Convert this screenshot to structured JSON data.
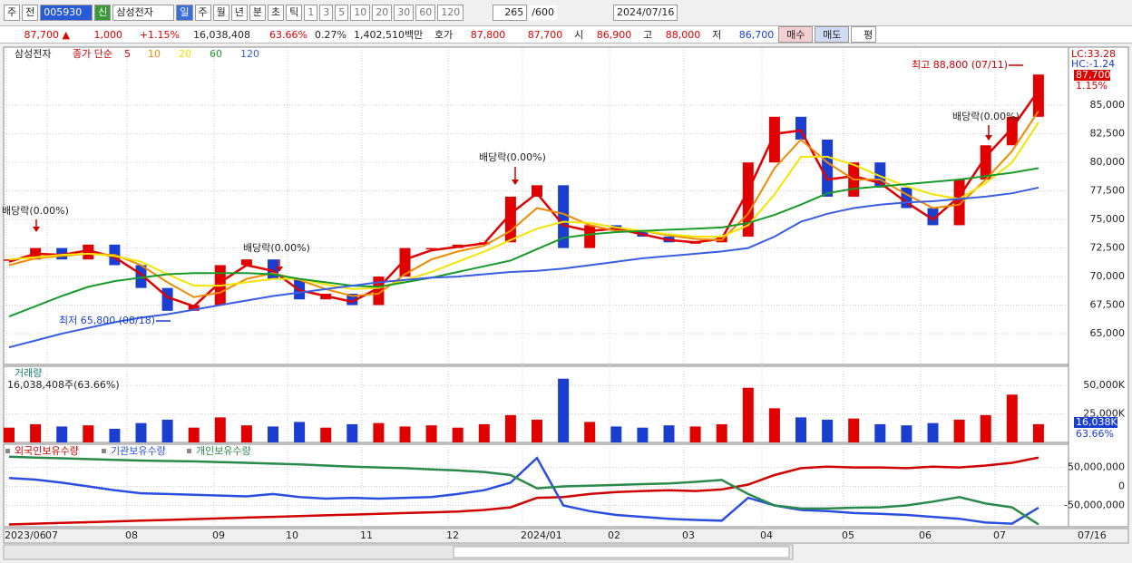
{
  "toolbar": {
    "items": [
      "주",
      "전",
      "005930",
      "신",
      "삼성전자",
      "일",
      "주",
      "월",
      "년",
      "분",
      "초",
      "틱",
      "1",
      "3",
      "5",
      "10",
      "20",
      "30",
      "60",
      "120",
      "265",
      "/600",
      "2024/07/16"
    ]
  },
  "quote": {
    "items": [
      "87,700 ▲",
      "1,000",
      "+1.15%",
      "16,038,408",
      "63.66%",
      "0.27%",
      "1,402,510백만",
      "호가",
      "87,800",
      "87,700",
      "시",
      "86,900",
      "고",
      "88,000",
      "저",
      "86,700",
      "매수",
      "매도",
      "평"
    ]
  },
  "x_axis": {
    "labels": [
      "2023/06",
      "07",
      "08",
      "09",
      "10",
      "11",
      "12",
      "2024/01",
      "02",
      "03",
      "04",
      "05",
      "06",
      "07"
    ],
    "end_label": "07/16"
  },
  "chart_data": [
    {
      "type": "candlestick",
      "title": "삼성전자",
      "subtitle": "종가 단순",
      "up_color": "#e00000",
      "down_color": "#1a3fd0",
      "close": [
        71500,
        72500,
        71500,
        72800,
        71000,
        69000,
        67000,
        67500,
        71000,
        71500,
        69800,
        68000,
        68500,
        67500,
        70000,
        72500,
        72500,
        72800,
        73000,
        77000,
        78000,
        72500,
        74500,
        74000,
        73500,
        73000,
        73000,
        73500,
        80000,
        84000,
        82000,
        77000,
        80000,
        77800,
        76000,
        74500,
        78500,
        81500,
        84000,
        87700
      ],
      "series": [
        {
          "name": "5",
          "color": "#e00000",
          "values": [
            71300,
            72000,
            71900,
            72300,
            71700,
            70200,
            68200,
            67400,
            69500,
            71000,
            70500,
            68800,
            68300,
            67800,
            69000,
            71500,
            72300,
            72600,
            72900,
            75500,
            77300,
            74500,
            74000,
            74200,
            73700,
            73200,
            73000,
            73300,
            77500,
            82500,
            82800,
            78500,
            78800,
            78200,
            76500,
            75000,
            77000,
            80500,
            83000,
            86300
          ]
        },
        {
          "name": "10",
          "color": "#f08a00",
          "values": [
            71000,
            71600,
            71800,
            72000,
            71900,
            71000,
            69500,
            68200,
            68600,
            69800,
            70300,
            69700,
            68900,
            68300,
            68500,
            70200,
            71500,
            72200,
            72700,
            74000,
            76000,
            75500,
            74500,
            74000,
            74000,
            73600,
            73300,
            73200,
            75500,
            79500,
            82000,
            80000,
            78500,
            78500,
            77200,
            76000,
            76300,
            78500,
            81000,
            84500
          ]
        },
        {
          "name": "20",
          "color": "#f5e400",
          "values": [
            71500,
            71700,
            71900,
            72000,
            71800,
            71300,
            70200,
            69200,
            69200,
            69500,
            69800,
            69800,
            69300,
            68900,
            69000,
            69700,
            70400,
            71300,
            72200,
            73200,
            74200,
            74800,
            74700,
            74300,
            74000,
            73700,
            73500,
            73500,
            74500,
            77200,
            80500,
            80500,
            79800,
            78800,
            77900,
            77200,
            76800,
            78200,
            80000,
            83500
          ]
        },
        {
          "name": "60",
          "color": "#1a9a2a",
          "values": [
            66500,
            67400,
            68300,
            69100,
            69600,
            69900,
            70200,
            70300,
            70300,
            70300,
            70200,
            69800,
            69500,
            69200,
            69100,
            69500,
            69900,
            70400,
            70900,
            71400,
            72400,
            73400,
            73700,
            73900,
            74000,
            74100,
            74200,
            74300,
            74700,
            75400,
            76300,
            77300,
            77700,
            77900,
            78100,
            78300,
            78500,
            78800,
            79100,
            79500
          ]
        },
        {
          "name": "120",
          "color": "#3a5ee0",
          "values": [
            63800,
            64400,
            65000,
            65500,
            66000,
            66400,
            66700,
            67100,
            67500,
            67900,
            68300,
            68600,
            68900,
            69200,
            69500,
            69700,
            69900,
            70000,
            70200,
            70400,
            70500,
            70700,
            71000,
            71300,
            71600,
            71800,
            72000,
            72200,
            72500,
            73500,
            74800,
            75500,
            76000,
            76300,
            76500,
            76600,
            76800,
            77000,
            77300,
            77800
          ]
        }
      ],
      "ylim": [
        62300,
        90100
      ],
      "yticks": [
        {
          "value": 65000,
          "label": "65,000"
        },
        {
          "value": 67500,
          "label": "67,500"
        },
        {
          "value": 70000,
          "label": "70,000"
        },
        {
          "value": 72500,
          "label": "72,500"
        },
        {
          "value": 75000,
          "label": "75,000"
        },
        {
          "value": 77500,
          "label": "77,500"
        },
        {
          "value": 80000,
          "label": "80,000"
        },
        {
          "value": 82500,
          "label": "82,500"
        },
        {
          "value": 85000,
          "label": "85,000"
        }
      ],
      "annotations": [
        "배당락(0.00%)",
        "배당락(0.00%)",
        "배당락(0.00%)",
        "배당락(0.00%)",
        "최저 65,800 (08/18)",
        "최고 88,800 (07/11)"
      ],
      "lc": "LC:33.28",
      "hc": "HC:-1.24",
      "current_label": "87,700",
      "change_label": "1.15%",
      "grid": true
    },
    {
      "type": "bar",
      "title": "거래량",
      "subtitle": "16,038,408주(63.66%)",
      "up_color": "#e00000",
      "down_color": "#1a3fd0",
      "values": [
        13000,
        16000,
        14000,
        15000,
        12000,
        17000,
        20000,
        13000,
        22000,
        15000,
        14000,
        18000,
        13000,
        16000,
        17000,
        14000,
        15000,
        13000,
        16000,
        24000,
        20000,
        56000,
        18000,
        14000,
        13000,
        15000,
        14000,
        16000,
        48000,
        30000,
        22000,
        20000,
        21000,
        16000,
        15000,
        17000,
        20000,
        24000,
        42000,
        16038
      ],
      "ylim": [
        0,
        66900
      ],
      "yticks": [
        {
          "value": 25000,
          "label": "25,000K"
        },
        {
          "value": 50000,
          "label": "50,000K"
        }
      ],
      "last_label": "16,038K",
      "ratio_label": "63.66%",
      "grid": true
    },
    {
      "type": "line",
      "ylim": [
        -106000000,
        111000000
      ],
      "yticks": [
        {
          "value": -50000000,
          "label": "-50,000,000"
        },
        0,
        {
          "value": 50000000,
          "label": "50,000,000"
        }
      ],
      "grid": true,
      "series": [
        {
          "name": "외국인보유수량",
          "color": "#d00000",
          "values": [
            -100000000,
            -98000000,
            -96000000,
            -94000000,
            -92000000,
            -90000000,
            -88000000,
            -86000000,
            -84000000,
            -82000000,
            -80000000,
            -78000000,
            -76000000,
            -74000000,
            -72000000,
            -70000000,
            -68000000,
            -66000000,
            -62000000,
            -55000000,
            -30000000,
            -28000000,
            -20000000,
            -15000000,
            -12000000,
            -10000000,
            -12000000,
            -8000000,
            5000000,
            30000000,
            48000000,
            52000000,
            50000000,
            50000000,
            48000000,
            52000000,
            50000000,
            55000000,
            62000000,
            76000000
          ]
        },
        {
          "name": "기관보유수량",
          "color": "#2a4fe0",
          "values": [
            22000000,
            18000000,
            10000000,
            0,
            -10000000,
            -18000000,
            -20000000,
            -22000000,
            -24000000,
            -26000000,
            -20000000,
            -28000000,
            -32000000,
            -30000000,
            -32000000,
            -30000000,
            -28000000,
            -20000000,
            -10000000,
            10000000,
            75000000,
            -50000000,
            -65000000,
            -75000000,
            -80000000,
            -85000000,
            -88000000,
            -90000000,
            -30000000,
            -50000000,
            -62000000,
            -65000000,
            -70000000,
            -72000000,
            -75000000,
            -80000000,
            -85000000,
            -95000000,
            -98000000,
            -56000000
          ]
        },
        {
          "name": "개인보유수량",
          "color": "#2a8a4a",
          "values": [
            78000000,
            76000000,
            74000000,
            72000000,
            70000000,
            68000000,
            67000000,
            66000000,
            64000000,
            62000000,
            60000000,
            58000000,
            55000000,
            52000000,
            50000000,
            48000000,
            45000000,
            42000000,
            38000000,
            30000000,
            -5000000,
            0,
            2000000,
            4000000,
            6000000,
            8000000,
            12000000,
            17000000,
            -20000000,
            -50000000,
            -58000000,
            -58000000,
            -56000000,
            -55000000,
            -50000000,
            -40000000,
            -28000000,
            -45000000,
            -55000000,
            -100000000
          ]
        }
      ]
    }
  ]
}
